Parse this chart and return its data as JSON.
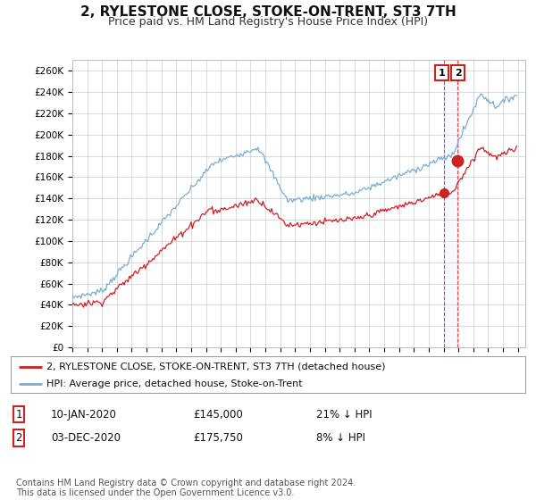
{
  "title": "2, RYLESTONE CLOSE, STOKE-ON-TRENT, ST3 7TH",
  "subtitle": "Price paid vs. HM Land Registry's House Price Index (HPI)",
  "title_fontsize": 11,
  "subtitle_fontsize": 9,
  "ylabel_ticks": [
    "£0",
    "£20K",
    "£40K",
    "£60K",
    "£80K",
    "£100K",
    "£120K",
    "£140K",
    "£160K",
    "£180K",
    "£200K",
    "£220K",
    "£240K",
    "£260K"
  ],
  "ytick_values": [
    0,
    20000,
    40000,
    60000,
    80000,
    100000,
    120000,
    140000,
    160000,
    180000,
    200000,
    220000,
    240000,
    260000
  ],
  "ylim": [
    0,
    270000
  ],
  "xlim_start": 1995.0,
  "xlim_end": 2025.5,
  "xtick_years": [
    1995,
    1996,
    1997,
    1998,
    1999,
    2000,
    2001,
    2002,
    2003,
    2004,
    2005,
    2006,
    2007,
    2008,
    2009,
    2010,
    2011,
    2012,
    2013,
    2014,
    2015,
    2016,
    2017,
    2018,
    2019,
    2020,
    2021,
    2022,
    2023,
    2024,
    2025
  ],
  "hpi_color": "#7aadd4",
  "price_color": "#cc2222",
  "marker_color": "#cc2222",
  "dashed_line_color": "#cc2222",
  "band_color": "#ddeeff",
  "legend_box_color": "#cc2222",
  "transaction1_date": 2020.03,
  "transaction1_price": 145000,
  "transaction2_date": 2020.92,
  "transaction2_price": 175750,
  "legend1_text": "2, RYLESTONE CLOSE, STOKE-ON-TRENT, ST3 7TH (detached house)",
  "legend2_text": "HPI: Average price, detached house, Stoke-on-Trent",
  "table_row1": [
    "1",
    "10-JAN-2020",
    "£145,000",
    "21% ↓ HPI"
  ],
  "table_row2": [
    "2",
    "03-DEC-2020",
    "£175,750",
    "8% ↓ HPI"
  ],
  "footnote": "Contains HM Land Registry data © Crown copyright and database right 2024.\nThis data is licensed under the Open Government Licence v3.0.",
  "bg_color": "#ffffff",
  "plot_bg_color": "#ffffff",
  "grid_color": "#cccccc"
}
